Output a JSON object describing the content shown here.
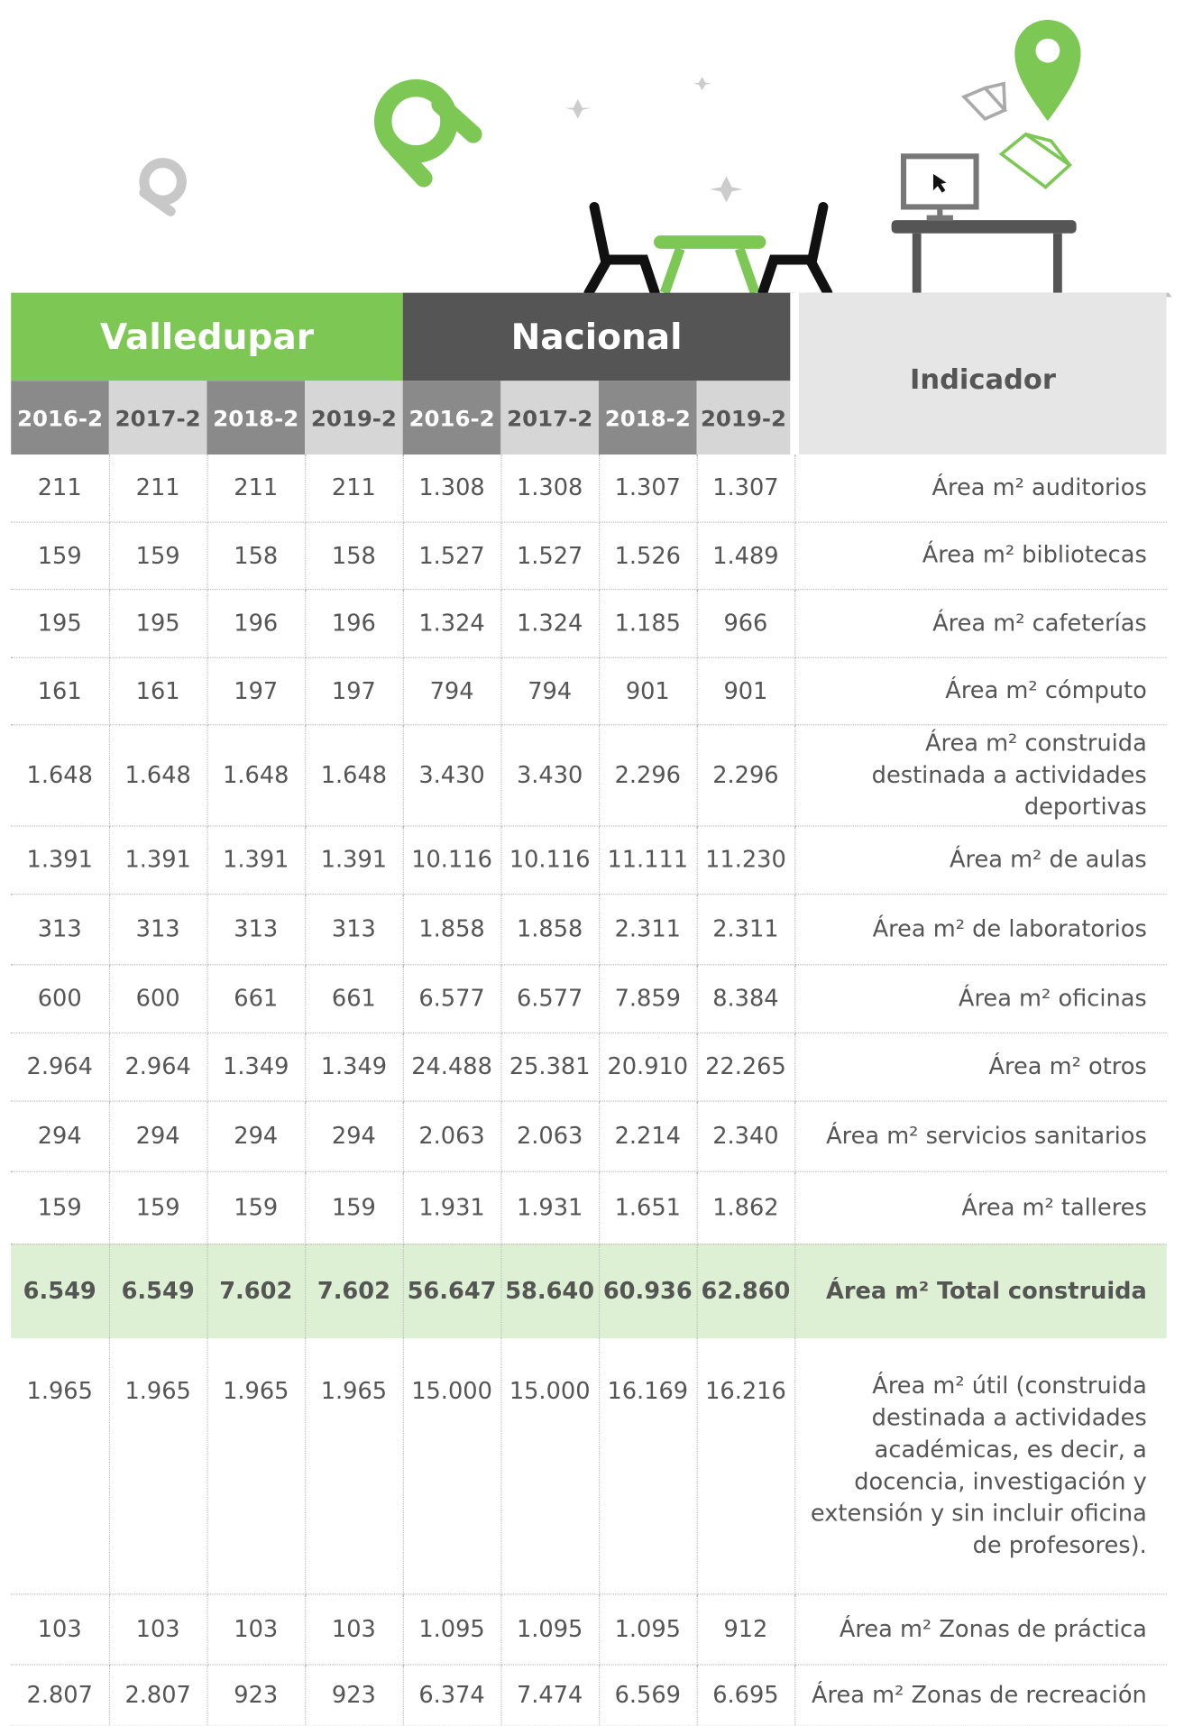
{
  "header": {
    "groups": [
      "Valledupar",
      "Nacional"
    ],
    "indicator": "Indicador",
    "years": [
      "2016-2",
      "2017-2",
      "2018-2",
      "2019-2",
      "2016-2",
      "2017-2",
      "2018-2",
      "2019-2"
    ]
  },
  "table": {
    "rows": [
      {
        "values": [
          "211",
          "211",
          "211",
          "211",
          "1.308",
          "1.308",
          "1.307",
          "1.307"
        ],
        "indicator": "Área m² auditorios"
      },
      {
        "values": [
          "159",
          "159",
          "158",
          "158",
          "1.527",
          "1.527",
          "1.526",
          "1.489"
        ],
        "indicator": "Área m² bibliotecas"
      },
      {
        "values": [
          "195",
          "195",
          "196",
          "196",
          "1.324",
          "1.324",
          "1.185",
          "966"
        ],
        "indicator": "Área m² cafeterías"
      },
      {
        "values": [
          "161",
          "161",
          "197",
          "197",
          "794",
          "794",
          "901",
          "901"
        ],
        "indicator": "Área m² cómputo"
      },
      {
        "values": [
          "1.648",
          "1.648",
          "1.648",
          "1.648",
          "3.430",
          "3.430",
          "2.296",
          "2.296"
        ],
        "indicator": "Área m² construida destinada a actividades deportivas"
      },
      {
        "values": [
          "1.391",
          "1.391",
          "1.391",
          "1.391",
          "10.116",
          "10.116",
          "11.111",
          "11.230"
        ],
        "indicator": "Área m² de aulas"
      },
      {
        "values": [
          "313",
          "313",
          "313",
          "313",
          "1.858",
          "1.858",
          "2.311",
          "2.311"
        ],
        "indicator": "Área m² de laboratorios"
      },
      {
        "values": [
          "600",
          "600",
          "661",
          "661",
          "6.577",
          "6.577",
          "7.859",
          "8.384"
        ],
        "indicator": "Área m² oficinas"
      },
      {
        "values": [
          "2.964",
          "2.964",
          "1.349",
          "1.349",
          "24.488",
          "25.381",
          "20.910",
          "22.265"
        ],
        "indicator": "Área m² otros"
      },
      {
        "values": [
          "294",
          "294",
          "294",
          "294",
          "2.063",
          "2.063",
          "2.214",
          "2.340"
        ],
        "indicator": "Área m² servicios sanitarios"
      },
      {
        "values": [
          "159",
          "159",
          "159",
          "159",
          "1.931",
          "1.931",
          "1.651",
          "1.862"
        ],
        "indicator": "Área m² talleres"
      },
      {
        "values": [
          "6.549",
          "6.549",
          "7.602",
          "7.602",
          "56.647",
          "58.640",
          "60.936",
          "62.860"
        ],
        "indicator": "Área m² Total construida",
        "style": "total"
      },
      {
        "values": [
          "1.965",
          "1.965",
          "1.965",
          "1.965",
          "15.000",
          "15.000",
          "16.169",
          "16.216"
        ],
        "indicator": "Área m² útil (construida destinada a actividades académicas, es decir, a docencia, investigación y extensión y sin incluir oficina de profesores)."
      },
      {
        "values": [
          "103",
          "103",
          "103",
          "103",
          "1.095",
          "1.095",
          "1.095",
          "912"
        ],
        "indicator": "Área m² Zonas de práctica"
      },
      {
        "values": [
          "2.807",
          "2.807",
          "923",
          "923",
          "6.374",
          "7.474",
          "6.569",
          "6.695"
        ],
        "indicator": "Área m² Zonas de recreación"
      }
    ]
  }
}
